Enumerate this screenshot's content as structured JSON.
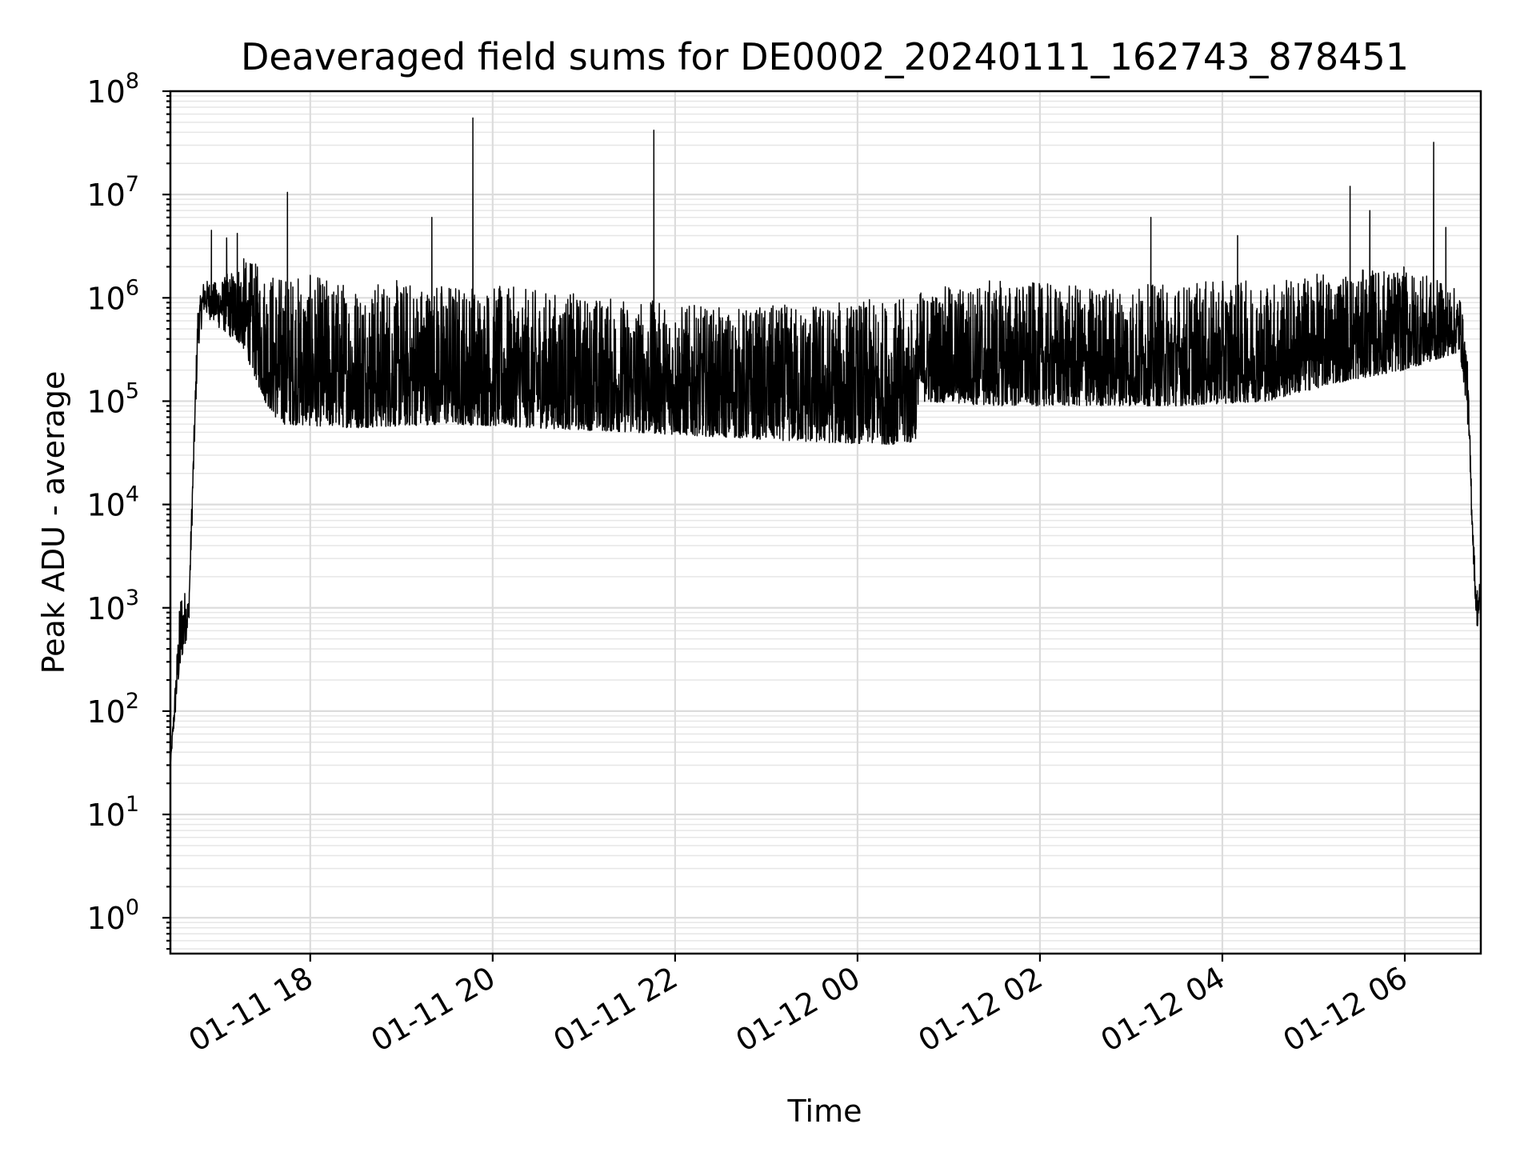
{
  "chart_data": {
    "type": "line",
    "title": "Deaveraged field sums for DE0002_20240111_162743_878451",
    "xlabel": "Time",
    "ylabel": "Peak ADU - average",
    "yscale": "log",
    "ylim": [
      0.45,
      100000000
    ],
    "xlim": [
      "2024-01-11 16:28",
      "2024-01-12 06:50"
    ],
    "grid": true,
    "legend": "none",
    "line_color": "#000000",
    "x_ticks": [
      {
        "value": "2024-01-11 18:00",
        "label": "01-11 18"
      },
      {
        "value": "2024-01-11 20:00",
        "label": "01-11 20"
      },
      {
        "value": "2024-01-11 22:00",
        "label": "01-11 22"
      },
      {
        "value": "2024-01-12 00:00",
        "label": "01-12 00"
      },
      {
        "value": "2024-01-12 02:00",
        "label": "01-12 02"
      },
      {
        "value": "2024-01-12 04:00",
        "label": "01-12 04"
      },
      {
        "value": "2024-01-12 06:00",
        "label": "01-12 06"
      }
    ],
    "y_ticks": [
      {
        "value": 1,
        "base": "10",
        "exp": "0"
      },
      {
        "value": 10,
        "base": "10",
        "exp": "1"
      },
      {
        "value": 100,
        "base": "10",
        "exp": "2"
      },
      {
        "value": 1000,
        "base": "10",
        "exp": "3"
      },
      {
        "value": 10000,
        "base": "10",
        "exp": "4"
      },
      {
        "value": 100000,
        "base": "10",
        "exp": "5"
      },
      {
        "value": 1000000,
        "base": "10",
        "exp": "6"
      },
      {
        "value": 10000000,
        "base": "10",
        "exp": "7"
      },
      {
        "value": 100000000,
        "base": "10",
        "exp": "8"
      }
    ],
    "series": [
      {
        "envelope": [
          {
            "t": "2024-01-11 16:28",
            "low": 30,
            "high": 30
          },
          {
            "t": "2024-01-11 16:35",
            "low": 300,
            "high": 1800
          },
          {
            "t": "2024-01-11 16:40",
            "low": 600,
            "high": 1200
          },
          {
            "t": "2024-01-11 16:46",
            "low": 300000,
            "high": 800000
          },
          {
            "t": "2024-01-11 16:50",
            "low": 700000,
            "high": 1500000
          },
          {
            "t": "2024-01-11 17:00",
            "low": 500000,
            "high": 1400000
          },
          {
            "t": "2024-01-11 17:15",
            "low": 350000,
            "high": 2500000
          },
          {
            "t": "2024-01-11 17:30",
            "low": 100000,
            "high": 2000000
          },
          {
            "t": "2024-01-11 17:40",
            "low": 60000,
            "high": 1800000
          },
          {
            "t": "2024-01-11 18:30",
            "low": 55000,
            "high": 1500000
          },
          {
            "t": "2024-01-11 19:30",
            "low": 60000,
            "high": 1500000
          },
          {
            "t": "2024-01-11 20:30",
            "low": 55000,
            "high": 1200000
          },
          {
            "t": "2024-01-11 21:30",
            "low": 50000,
            "high": 1000000
          },
          {
            "t": "2024-01-11 22:30",
            "low": 45000,
            "high": 800000
          },
          {
            "t": "2024-01-11 23:30",
            "low": 40000,
            "high": 900000
          },
          {
            "t": "2024-01-12 00:30",
            "low": 38000,
            "high": 1000000
          },
          {
            "t": "2024-01-12 00:38",
            "low": 40000,
            "high": 800000
          },
          {
            "t": "2024-01-12 00:40",
            "low": 100000,
            "high": 1200000
          },
          {
            "t": "2024-01-12 01:30",
            "low": 90000,
            "high": 1500000
          },
          {
            "t": "2024-01-12 02:30",
            "low": 90000,
            "high": 1300000
          },
          {
            "t": "2024-01-12 03:30",
            "low": 90000,
            "high": 1400000
          },
          {
            "t": "2024-01-12 04:30",
            "low": 100000,
            "high": 1500000
          },
          {
            "t": "2024-01-12 05:15",
            "low": 150000,
            "high": 1800000
          },
          {
            "t": "2024-01-12 06:00",
            "low": 200000,
            "high": 2000000
          },
          {
            "t": "2024-01-12 06:36",
            "low": 300000,
            "high": 1200000
          },
          {
            "t": "2024-01-12 06:41",
            "low": 80000,
            "high": 300000
          },
          {
            "t": "2024-01-12 06:45",
            "low": 3000,
            "high": 6000
          },
          {
            "t": "2024-01-12 06:47",
            "low": 700,
            "high": 1500
          },
          {
            "t": "2024-01-12 06:50",
            "low": 500,
            "high": 2000
          }
        ],
        "spikes": [
          {
            "t": "2024-01-11 16:55",
            "y": 4500000
          },
          {
            "t": "2024-01-11 17:05",
            "y": 3800000
          },
          {
            "t": "2024-01-11 17:12",
            "y": 4200000
          },
          {
            "t": "2024-01-11 17:45",
            "y": 10500000
          },
          {
            "t": "2024-01-11 19:20",
            "y": 6000000
          },
          {
            "t": "2024-01-11 19:47",
            "y": 55000000
          },
          {
            "t": "2024-01-11 21:46",
            "y": 42000000
          },
          {
            "t": "2024-01-12 03:13",
            "y": 6000000
          },
          {
            "t": "2024-01-12 04:10",
            "y": 4000000
          },
          {
            "t": "2024-01-12 05:24",
            "y": 12000000
          },
          {
            "t": "2024-01-12 05:37",
            "y": 7000000
          },
          {
            "t": "2024-01-12 06:19",
            "y": 32000000
          },
          {
            "t": "2024-01-12 06:27",
            "y": 4800000
          }
        ]
      }
    ]
  }
}
